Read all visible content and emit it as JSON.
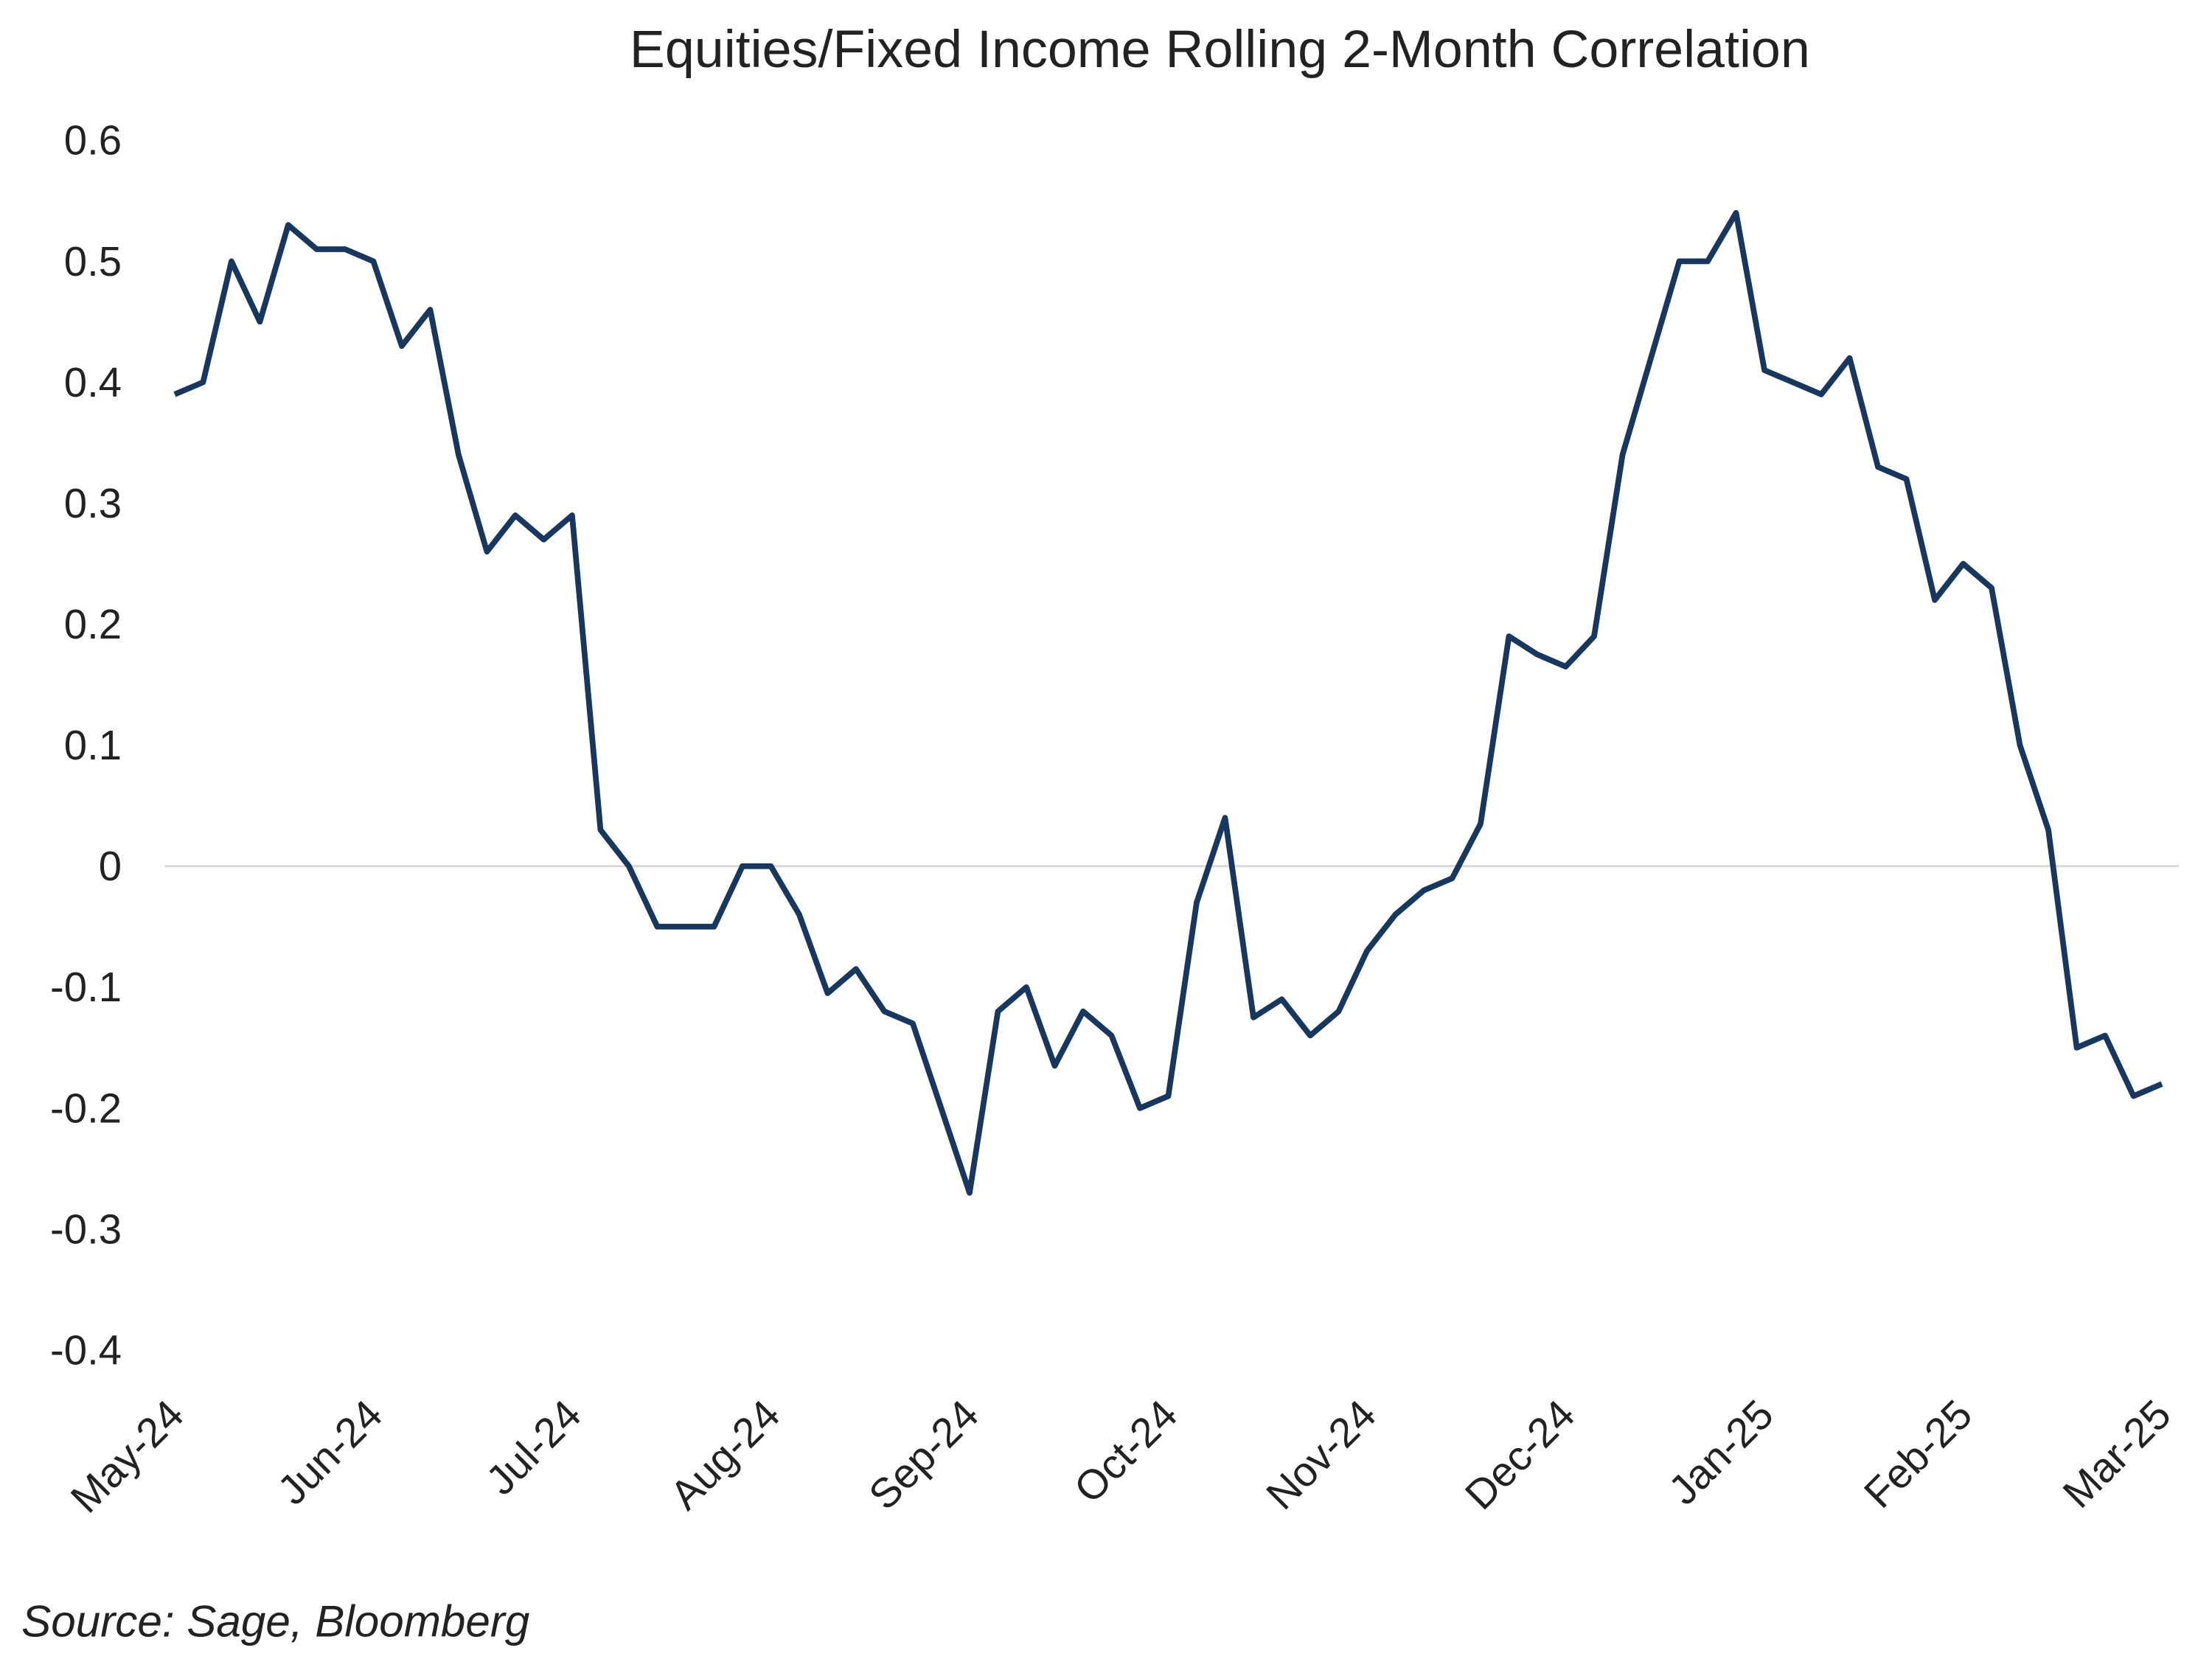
{
  "chart_data": {
    "type": "line",
    "title": "Equities/Fixed Income Rolling 2-Month Correlation",
    "source": "Source: Sage, Bloomberg",
    "categories": [
      "May-24",
      null,
      null,
      null,
      null,
      null,
      null,
      "Jun-24",
      null,
      null,
      null,
      null,
      null,
      null,
      "Jul-24",
      null,
      null,
      null,
      null,
      null,
      null,
      "Aug-24",
      null,
      null,
      null,
      null,
      null,
      null,
      "Sep-24",
      null,
      null,
      null,
      null,
      null,
      null,
      "Oct-24",
      null,
      null,
      null,
      null,
      null,
      null,
      "Nov-24",
      null,
      null,
      null,
      null,
      null,
      null,
      "Dec-24",
      null,
      null,
      null,
      null,
      null,
      null,
      "Jan-25",
      null,
      null,
      null,
      null,
      null,
      null,
      "Feb-25",
      null,
      null,
      null,
      null,
      null,
      null,
      "Mar-25"
    ],
    "series": [
      {
        "color": "#17375e",
        "values": [
          0.39,
          0.4,
          0.5,
          0.45,
          0.53,
          0.51,
          0.51,
          0.5,
          0.43,
          0.46,
          0.34,
          0.26,
          0.29,
          0.27,
          0.29,
          0.03,
          0.0,
          -0.05,
          -0.05,
          -0.05,
          0.0,
          0.0,
          -0.04,
          -0.105,
          -0.085,
          -0.12,
          -0.13,
          -0.2,
          -0.27,
          -0.12,
          -0.1,
          -0.165,
          -0.12,
          -0.14,
          -0.2,
          -0.19,
          -0.03,
          0.04,
          -0.125,
          -0.11,
          -0.14,
          -0.12,
          -0.07,
          -0.04,
          -0.02,
          -0.01,
          0.035,
          0.19,
          0.175,
          0.165,
          0.19,
          0.34,
          0.42,
          0.5,
          0.5,
          0.54,
          0.41,
          0.4,
          0.39,
          0.42,
          0.33,
          0.32,
          0.22,
          0.25,
          0.23,
          0.1,
          0.03,
          -0.15,
          -0.14,
          -0.19,
          -0.18
        ]
      }
    ],
    "ylim": [
      -0.4,
      0.6
    ],
    "yticks": [
      -0.4,
      -0.3,
      -0.2,
      -0.1,
      0,
      0.1,
      0.2,
      0.3,
      0.4,
      0.5,
      0.6
    ],
    "zero_line": true
  }
}
